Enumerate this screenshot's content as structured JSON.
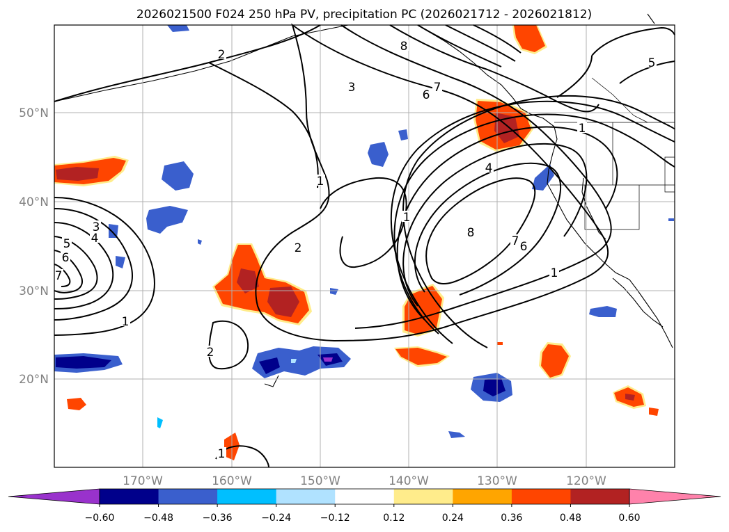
{
  "title": "2026021500 F024 250 hPa PV, precipitation PC (2026021712 - 2026021812)",
  "map": {
    "lat_ticks": [
      "50°N",
      "40°N",
      "30°N",
      "20°N"
    ],
    "lon_ticks": [
      "170°W",
      "160°W",
      "150°W",
      "140°W",
      "130°W",
      "120°W"
    ],
    "gridlines": true,
    "pv_contour_labels": [
      "2",
      "3",
      "6",
      "7",
      "8",
      "5",
      "4",
      "8",
      "7",
      "6",
      "1",
      "1",
      "2",
      "1",
      "2",
      "3",
      "4",
      "5",
      "6",
      "7",
      "1",
      "1",
      "1"
    ]
  },
  "colorbar": {
    "tick_labels": [
      "−0.60",
      "−0.48",
      "−0.36",
      "−0.24",
      "−0.12",
      "0.12",
      "0.24",
      "0.36",
      "0.48",
      "0.60"
    ],
    "colors": [
      "#9932cc",
      "#00008b",
      "#3a5fcd",
      "#00bfff",
      "#b0e2ff",
      "#ffffff",
      "#ffec8b",
      "#ffa500",
      "#ff4500",
      "#b22222",
      "#ff82ab"
    ]
  },
  "colors": {
    "neg_deep": "#00008b",
    "neg_mid": "#3a5fcd",
    "neg_light": "#00bfff",
    "neg_pale": "#b0e2ff",
    "neg_extreme": "#9932cc",
    "pos_pale": "#ffec8b",
    "pos_light": "#ffa500",
    "pos_mid": "#ff4500",
    "pos_deep": "#b22222",
    "pos_extreme": "#ff82ab",
    "grid": "#b0b0b0",
    "contour": "#000000",
    "tick_text": "#808080"
  }
}
